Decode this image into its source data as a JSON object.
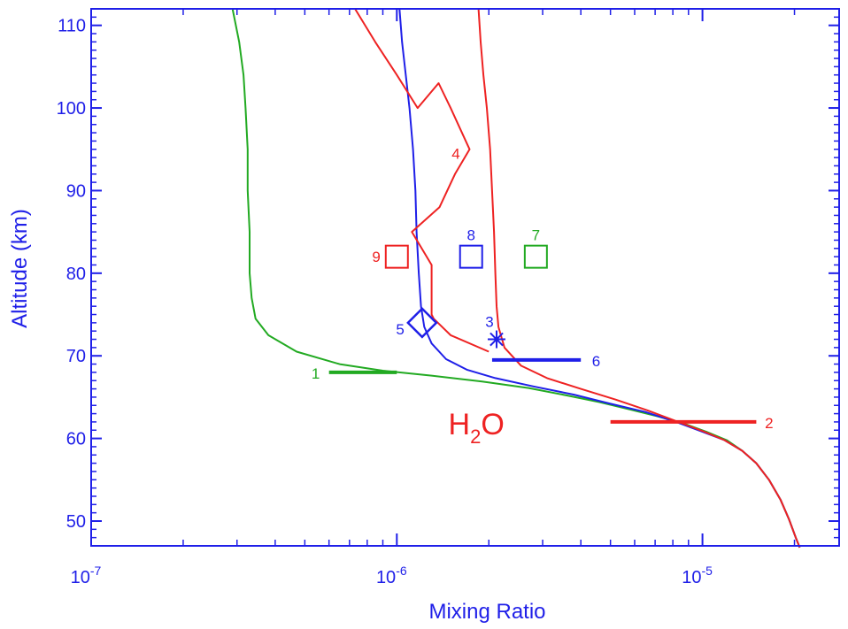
{
  "chart_data": {
    "type": "line",
    "x_scale": "log",
    "xlim": [
      1e-07,
      2.8e-05
    ],
    "ylim": [
      47,
      112
    ],
    "xlabel": "Mixing Ratio",
    "ylabel": "Altitude (km)",
    "grid": false,
    "x_ticks": [
      {
        "value": 1e-07,
        "mantissa": "10",
        "exponent": "-7"
      },
      {
        "value": 1e-06,
        "mantissa": "10",
        "exponent": "-6"
      },
      {
        "value": 1e-05,
        "mantissa": "10",
        "exponent": "-5"
      }
    ],
    "y_ticks": [
      {
        "value": 50,
        "label": "50"
      },
      {
        "value": 60,
        "label": "60"
      },
      {
        "value": 70,
        "label": "70"
      },
      {
        "value": 80,
        "label": "80"
      },
      {
        "value": 90,
        "label": "90"
      },
      {
        "value": 100,
        "label": "100"
      },
      {
        "value": 110,
        "label": "110"
      }
    ],
    "annotation": {
      "base": "H",
      "subscript": "2",
      "rest": "O",
      "x": 1.85e-06,
      "y": 62,
      "color": "#ee2222"
    },
    "series": [
      {
        "color": "#22aa22",
        "points": [
          [
            2.9e-07,
            112
          ],
          [
            3.05e-07,
            108
          ],
          [
            3.15e-07,
            104
          ],
          [
            3.2e-07,
            100
          ],
          [
            3.25e-07,
            95
          ],
          [
            3.25e-07,
            90
          ],
          [
            3.3e-07,
            85
          ],
          [
            3.3e-07,
            80
          ],
          [
            3.35e-07,
            77
          ],
          [
            3.45e-07,
            74.5
          ],
          [
            3.8e-07,
            72.5
          ],
          [
            4.7e-07,
            70.5
          ],
          [
            6.5e-07,
            69
          ],
          [
            9e-07,
            68.2
          ],
          [
            1.3e-06,
            67.6
          ],
          [
            1.9e-06,
            66.9
          ],
          [
            2.7e-06,
            66.1
          ],
          [
            3.6e-06,
            65.2
          ],
          [
            4.6e-06,
            64.4
          ],
          [
            5.8e-06,
            63.5
          ],
          [
            7.1e-06,
            62.7
          ],
          [
            8.7e-06,
            61.8
          ],
          [
            1.03e-05,
            60.8
          ],
          [
            1.2e-05,
            59.8
          ],
          [
            1.35e-05,
            58.5
          ],
          [
            1.5e-05,
            57
          ],
          [
            1.65e-05,
            55
          ],
          [
            1.8e-05,
            52.6
          ],
          [
            1.92e-05,
            50.2
          ],
          [
            2.02e-05,
            48
          ],
          [
            2.08e-05,
            46.8
          ]
        ]
      },
      {
        "color": "#1f1fe8",
        "points": [
          [
            1.02e-06,
            112
          ],
          [
            1.04e-06,
            108
          ],
          [
            1.07e-06,
            104
          ],
          [
            1.1e-06,
            100
          ],
          [
            1.13e-06,
            95
          ],
          [
            1.15e-06,
            90
          ],
          [
            1.16e-06,
            85
          ],
          [
            1.18e-06,
            80
          ],
          [
            1.2e-06,
            76
          ],
          [
            1.23e-06,
            73.5
          ],
          [
            1.3e-06,
            71.5
          ],
          [
            1.45e-06,
            69.6
          ],
          [
            1.7e-06,
            68.3
          ],
          [
            2.1e-06,
            67.3
          ],
          [
            2.8e-06,
            66.3
          ],
          [
            3.8e-06,
            65.3
          ],
          [
            5e-06,
            64.2
          ],
          [
            6.5e-06,
            63.2
          ],
          [
            8.2e-06,
            62
          ],
          [
            1e-05,
            60.8
          ],
          [
            1.18e-05,
            59.8
          ],
          [
            1.35e-05,
            58.5
          ],
          [
            1.5e-05,
            57
          ],
          [
            1.65e-05,
            55
          ],
          [
            1.8e-05,
            52.6
          ],
          [
            1.92e-05,
            50.2
          ],
          [
            2.02e-05,
            48
          ],
          [
            2.08e-05,
            46.8
          ]
        ]
      },
      {
        "color": "#ee2222",
        "points": [
          [
            1.85e-06,
            112
          ],
          [
            1.88e-06,
            108
          ],
          [
            1.92e-06,
            104
          ],
          [
            1.97e-06,
            100
          ],
          [
            2.02e-06,
            95
          ],
          [
            2.05e-06,
            90
          ],
          [
            2.08e-06,
            85
          ],
          [
            2.1e-06,
            80
          ],
          [
            2.12e-06,
            76
          ],
          [
            2.15e-06,
            73.5
          ],
          [
            2.25e-06,
            71
          ],
          [
            2.55e-06,
            68.8
          ],
          [
            3.1e-06,
            67.3
          ],
          [
            4e-06,
            66
          ],
          [
            5.2e-06,
            64.7
          ],
          [
            6.6e-06,
            63.4
          ],
          [
            8.2e-06,
            62.1
          ],
          [
            1e-05,
            60.9
          ],
          [
            1.18e-05,
            59.8
          ],
          [
            1.35e-05,
            58.5
          ],
          [
            1.5e-05,
            57
          ],
          [
            1.65e-05,
            55
          ],
          [
            1.8e-05,
            52.6
          ],
          [
            1.92e-05,
            50.2
          ],
          [
            2.02e-05,
            48
          ],
          [
            2.08e-05,
            46.8
          ]
        ]
      },
      {
        "color": "#ee2222",
        "points": [
          [
            7.3e-07,
            112
          ],
          [
            8.5e-07,
            108
          ],
          [
            1e-06,
            104
          ],
          [
            1.17e-06,
            100
          ],
          [
            1.37e-06,
            103
          ],
          [
            1.5e-06,
            100
          ],
          [
            1.73e-06,
            95
          ],
          [
            1.55e-06,
            92
          ],
          [
            1.38e-06,
            88
          ],
          [
            1.12e-06,
            85
          ],
          [
            1.3e-06,
            81
          ],
          [
            1.3e-06,
            75
          ],
          [
            1.32e-06,
            74.5
          ],
          [
            1.5e-06,
            72.5
          ],
          [
            2e-06,
            70.5
          ]
        ]
      }
    ],
    "measurements": [
      {
        "label": "1",
        "type": "hbar",
        "x": [
          6e-07,
          1e-06
        ],
        "y": 68,
        "color": "#22aa22",
        "label_x": 5.6e-07
      },
      {
        "label": "2",
        "type": "hbar",
        "x": [
          5e-06,
          1.5e-05
        ],
        "y": 62,
        "color": "#ee2222",
        "label_x": 1.6e-05
      },
      {
        "label": "3",
        "type": "asterisk",
        "x": 2.12e-06,
        "y": 72,
        "color": "#1f1fe8"
      },
      {
        "label": "4",
        "type": "curve_label",
        "x": 1.56e-06,
        "y": 94.5,
        "color": "#ee2222"
      },
      {
        "label": "5",
        "type": "diamond",
        "x": 1.21e-06,
        "y": 74,
        "color": "#1f1fe8"
      },
      {
        "label": "6",
        "type": "hbar",
        "x": [
          2.05e-06,
          4e-06
        ],
        "y": 69.5,
        "color": "#1f1fe8",
        "label_x": 4.35e-06
      },
      {
        "label": "7",
        "type": "square",
        "x": 2.85e-06,
        "y": 82,
        "color": "#22aa22"
      },
      {
        "label": "8",
        "type": "square",
        "x": 1.75e-06,
        "y": 82,
        "color": "#1f1fe8"
      },
      {
        "label": "9",
        "type": "square",
        "x": 1e-06,
        "y": 82,
        "color": "#ee2222"
      }
    ]
  },
  "colors": {
    "axis": "#1f1fe8",
    "green": "#22aa22",
    "blue": "#1f1fe8",
    "red": "#ee2222"
  }
}
